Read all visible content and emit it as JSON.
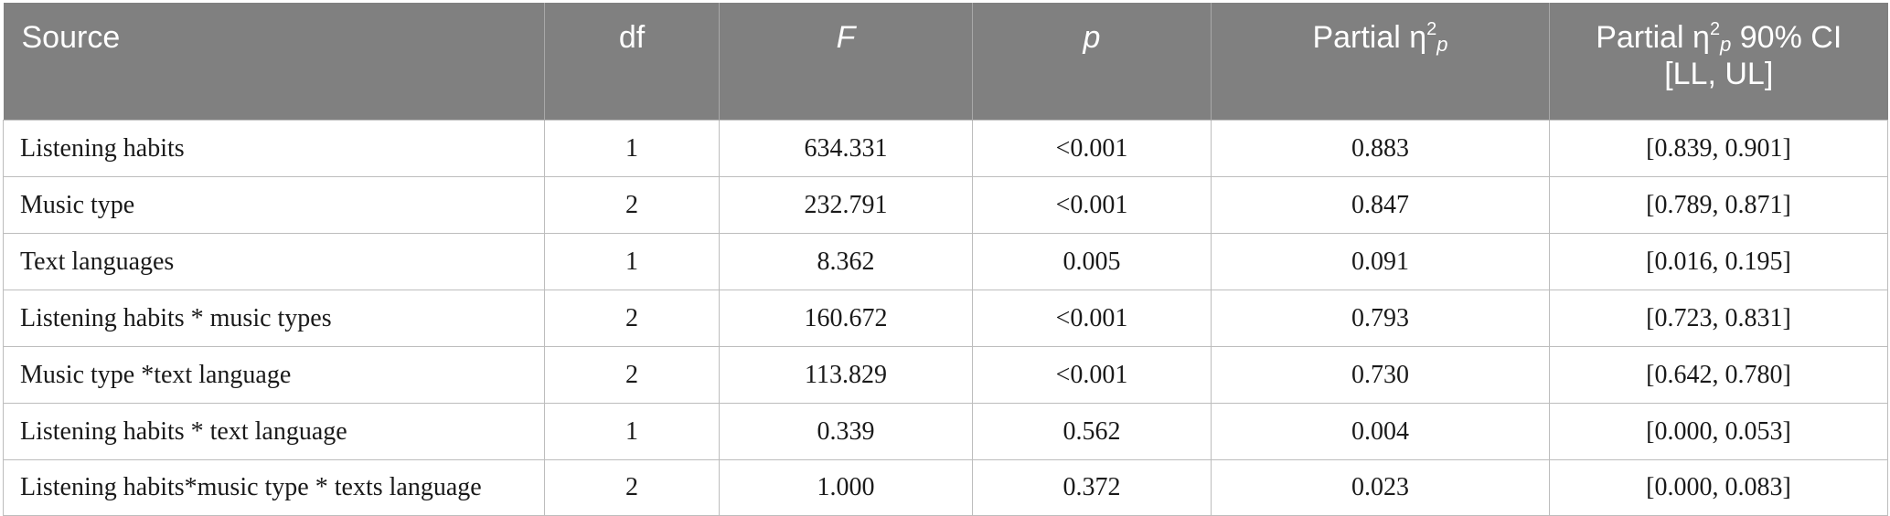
{
  "table": {
    "columns": [
      {
        "key": "source",
        "label": "Source"
      },
      {
        "key": "df",
        "label": "df"
      },
      {
        "key": "f",
        "label": "F"
      },
      {
        "key": "p",
        "label": "p"
      },
      {
        "key": "eta",
        "label_main": "Partial η",
        "label_sup": "2",
        "label_sub": "p"
      },
      {
        "key": "ci",
        "label_main": "Partial η",
        "label_sup": "2",
        "label_sub": "p",
        "label_tail": " 90% CI",
        "label_line2": "[LL, UL]"
      }
    ],
    "rows": [
      {
        "source": "Listening habits",
        "df": "1",
        "f": "634.331",
        "p": "<0.001",
        "eta": "0.883",
        "ci": "[0.839, 0.901]"
      },
      {
        "source": "Music type",
        "df": "2",
        "f": "232.791",
        "p": "<0.001",
        "eta": "0.847",
        "ci": "[0.789, 0.871]"
      },
      {
        "source": "Text languages",
        "df": "1",
        "f": "8.362",
        "p": "0.005",
        "eta": "0.091",
        "ci": "[0.016, 0.195]"
      },
      {
        "source": "Listening habits * music types",
        "df": "2",
        "f": "160.672",
        "p": "<0.001",
        "eta": "0.793",
        "ci": "[0.723, 0.831]"
      },
      {
        "source": "Music type *text language",
        "df": "2",
        "f": "113.829",
        "p": "<0.001",
        "eta": "0.730",
        "ci": "[0.642, 0.780]"
      },
      {
        "source": "Listening habits * text language",
        "df": "1",
        "f": "0.339",
        "p": "0.562",
        "eta": "0.004",
        "ci": "[0.000, 0.053]"
      },
      {
        "source": "Listening habits*music type * texts language",
        "df": "2",
        "f": "1.000",
        "p": "0.372",
        "eta": "0.023",
        "ci": "[0.000, 0.083]"
      }
    ]
  }
}
